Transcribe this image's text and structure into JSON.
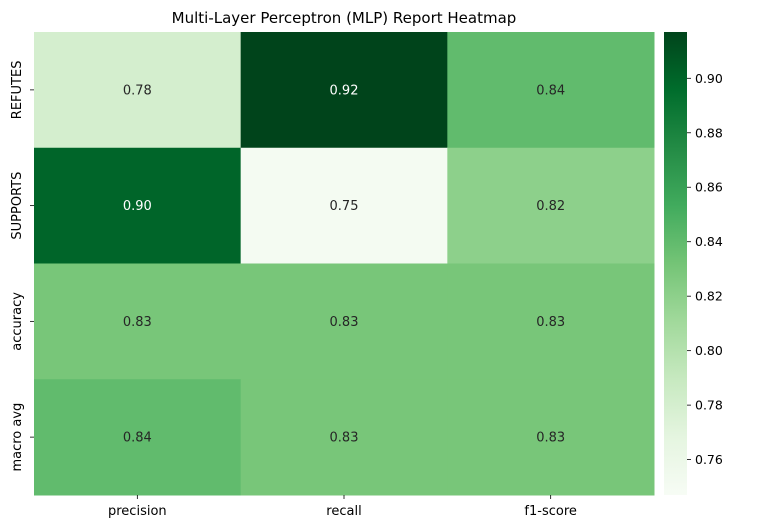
{
  "chart_data": {
    "type": "heatmap",
    "title": "Multi-Layer Perceptron (MLP) Report Heatmap",
    "xlabel": "",
    "ylabel": "",
    "x_categories": [
      "precision",
      "recall",
      "f1-score"
    ],
    "y_categories": [
      "REFUTES",
      "SUPPORTS",
      "accuracy",
      "macro avg"
    ],
    "values": [
      [
        0.78,
        0.92,
        0.84
      ],
      [
        0.9,
        0.75,
        0.82
      ],
      [
        0.83,
        0.83,
        0.83
      ],
      [
        0.84,
        0.83,
        0.83
      ]
    ],
    "cell_labels": [
      [
        "0.78",
        "0.92",
        "0.84"
      ],
      [
        "0.90",
        "0.75",
        "0.82"
      ],
      [
        "0.83",
        "0.83",
        "0.83"
      ],
      [
        "0.84",
        "0.83",
        "0.83"
      ]
    ],
    "colormap": "Greens",
    "color_range": [
      0.747,
      0.917
    ],
    "colorbar_ticks": [
      0.76,
      0.78,
      0.8,
      0.82,
      0.84,
      0.86,
      0.88,
      0.9
    ],
    "colorbar_tick_labels": [
      "0.76",
      "0.78",
      "0.80",
      "0.82",
      "0.84",
      "0.86",
      "0.88",
      "0.90"
    ],
    "grid": false,
    "legend": "colorbar-right"
  }
}
